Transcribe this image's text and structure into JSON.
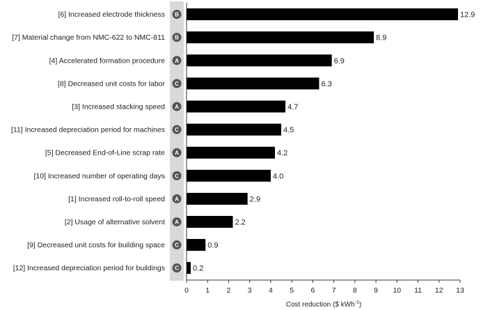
{
  "chart_data": {
    "type": "bar",
    "orientation": "horizontal",
    "title": "",
    "xlabel": "Cost reduction ($ kWh",
    "xlabel_superscript": "-1",
    "xlabel_suffix": ")",
    "xlim": [
      0,
      13
    ],
    "xticks": [
      0,
      1,
      2,
      3,
      4,
      5,
      6,
      7,
      8,
      9,
      10,
      11,
      12,
      13
    ],
    "grid": false,
    "bar_color": "#000000",
    "badge_color": "#555555",
    "badge_strip_color": "#d9d9d9",
    "categories": [
      "[6] Increased electrode thickness",
      "[7] Material change from NMC-622 to NMC-811",
      "[4] Accelerated formation procedure",
      "[8] Decreased unit costs for labor",
      "[3] Increased stacking speed",
      "[11] Increased depreciation period for machines",
      "[5] Decreased End-of-Line scrap rate",
      "[10] Increased number of operating days",
      "[1] Increased roll-to-roll speed",
      "[2] Usage of alternative solvent",
      "[9] Decreased unit costs for building space",
      "[12] Increased depreciation period for buildings"
    ],
    "badges": [
      "B",
      "B",
      "A",
      "C",
      "A",
      "C",
      "A",
      "C",
      "A",
      "A",
      "C",
      "C"
    ],
    "values": [
      12.9,
      8.9,
      6.9,
      6.3,
      4.7,
      4.5,
      4.2,
      4.0,
      2.9,
      2.2,
      0.9,
      0.2
    ],
    "value_labels": [
      "12.9",
      "8.9",
      "6.9",
      "6.3",
      "4.7",
      "4.5",
      "4.2",
      "4.0",
      "2.9",
      "2.2",
      "0.9",
      "0.2"
    ]
  }
}
